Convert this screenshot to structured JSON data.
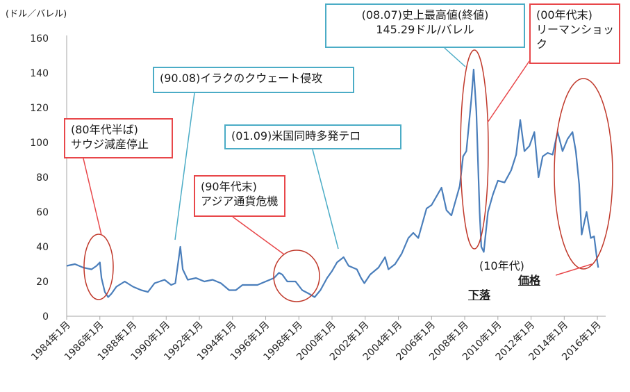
{
  "chart_data": {
    "type": "line",
    "unit_label": "(ドル／バレル)",
    "ylim": [
      0,
      160
    ],
    "y_ticks": [
      "0",
      "20",
      "40",
      "60",
      "80",
      "100",
      "120",
      "140",
      "160"
    ],
    "x_ticks": [
      "1984年1月",
      "1986年1月",
      "1988年1月",
      "1990年1月",
      "1992年1月",
      "1994年1月",
      "1996年1月",
      "1998年1月",
      "2000年1月",
      "2002年1月",
      "2004年1月",
      "2006年1月",
      "2008年1月",
      "2010年1月",
      "2012年1月",
      "2014年1月",
      "2016年1月"
    ],
    "xlim": [
      1984.0,
      2016.5
    ],
    "grid": false,
    "line_color": "#4a7ebb",
    "series": [
      {
        "points": [
          [
            1984.0,
            29
          ],
          [
            1984.5,
            30
          ],
          [
            1985.0,
            28
          ],
          [
            1985.5,
            27
          ],
          [
            1985.8,
            29
          ],
          [
            1986.0,
            31
          ],
          [
            1986.1,
            22
          ],
          [
            1986.3,
            14
          ],
          [
            1986.5,
            11
          ],
          [
            1986.7,
            13
          ],
          [
            1987.0,
            17
          ],
          [
            1987.5,
            20
          ],
          [
            1988.0,
            17
          ],
          [
            1988.5,
            15
          ],
          [
            1988.9,
            14
          ],
          [
            1989.3,
            19
          ],
          [
            1989.9,
            21
          ],
          [
            1990.3,
            18
          ],
          [
            1990.55,
            19
          ],
          [
            1990.75,
            33
          ],
          [
            1990.85,
            40
          ],
          [
            1991.0,
            27
          ],
          [
            1991.3,
            21
          ],
          [
            1991.8,
            22
          ],
          [
            1992.3,
            20
          ],
          [
            1992.8,
            21
          ],
          [
            1993.3,
            19
          ],
          [
            1993.8,
            15
          ],
          [
            1994.2,
            15
          ],
          [
            1994.6,
            18
          ],
          [
            1995.0,
            18
          ],
          [
            1995.5,
            18
          ],
          [
            1996.0,
            20
          ],
          [
            1996.5,
            22
          ],
          [
            1996.8,
            25
          ],
          [
            1997.0,
            24
          ],
          [
            1997.3,
            20
          ],
          [
            1997.8,
            20
          ],
          [
            1998.2,
            15
          ],
          [
            1998.6,
            13
          ],
          [
            1998.95,
            11
          ],
          [
            1999.3,
            15
          ],
          [
            1999.7,
            22
          ],
          [
            2000.0,
            26
          ],
          [
            2000.3,
            31
          ],
          [
            2000.7,
            34
          ],
          [
            2001.0,
            29
          ],
          [
            2001.5,
            27
          ],
          [
            2001.75,
            22
          ],
          [
            2001.95,
            19
          ],
          [
            2002.3,
            24
          ],
          [
            2002.8,
            28
          ],
          [
            2003.2,
            34
          ],
          [
            2003.4,
            27
          ],
          [
            2003.8,
            30
          ],
          [
            2004.2,
            36
          ],
          [
            2004.6,
            45
          ],
          [
            2004.9,
            48
          ],
          [
            2005.2,
            45
          ],
          [
            2005.7,
            62
          ],
          [
            2006.0,
            64
          ],
          [
            2006.6,
            74
          ],
          [
            2006.9,
            61
          ],
          [
            2007.2,
            58
          ],
          [
            2007.7,
            75
          ],
          [
            2007.9,
            92
          ],
          [
            2008.1,
            95
          ],
          [
            2008.4,
            125
          ],
          [
            2008.54,
            142
          ],
          [
            2008.7,
            118
          ],
          [
            2008.9,
            60
          ],
          [
            2009.0,
            40
          ],
          [
            2009.15,
            37
          ],
          [
            2009.4,
            60
          ],
          [
            2009.7,
            70
          ],
          [
            2010.0,
            78
          ],
          [
            2010.4,
            77
          ],
          [
            2010.8,
            84
          ],
          [
            2011.1,
            93
          ],
          [
            2011.35,
            113
          ],
          [
            2011.6,
            95
          ],
          [
            2011.9,
            98
          ],
          [
            2012.2,
            106
          ],
          [
            2012.45,
            80
          ],
          [
            2012.7,
            92
          ],
          [
            2013.0,
            94
          ],
          [
            2013.3,
            93
          ],
          [
            2013.6,
            106
          ],
          [
            2013.9,
            95
          ],
          [
            2014.2,
            102
          ],
          [
            2014.5,
            106
          ],
          [
            2014.7,
            95
          ],
          [
            2014.9,
            76
          ],
          [
            2015.05,
            47
          ],
          [
            2015.35,
            60
          ],
          [
            2015.6,
            45
          ],
          [
            2015.8,
            46
          ],
          [
            2016.0,
            31
          ],
          [
            2016.05,
            28
          ]
        ]
      }
    ],
    "annotations": [
      {
        "id": "a8007",
        "style": "blue",
        "lines": [
          "(08.07)史上最高値(終値)",
          "145.29ドル/バレル"
        ]
      },
      {
        "id": "a00",
        "style": "red",
        "lines": [
          "(00年代末)",
          "リーマンショッ",
          "ク"
        ]
      },
      {
        "id": "a9008",
        "style": "blue",
        "lines": [
          "(90.08)イラクのクウェート侵攻"
        ]
      },
      {
        "id": "a80",
        "style": "red",
        "lines": [
          "(80年代半ば)",
          "サウジ減産停止"
        ]
      },
      {
        "id": "a0109",
        "style": "blue",
        "lines": [
          "(01.09)米国同時多発テロ"
        ]
      },
      {
        "id": "a90",
        "style": "red",
        "lines": [
          "(90年代末)",
          "アジア通貨危機"
        ]
      },
      {
        "id": "a10",
        "style": "plain",
        "lines": [
          "(10年代)",
          "価格",
          "下落"
        ]
      }
    ]
  }
}
